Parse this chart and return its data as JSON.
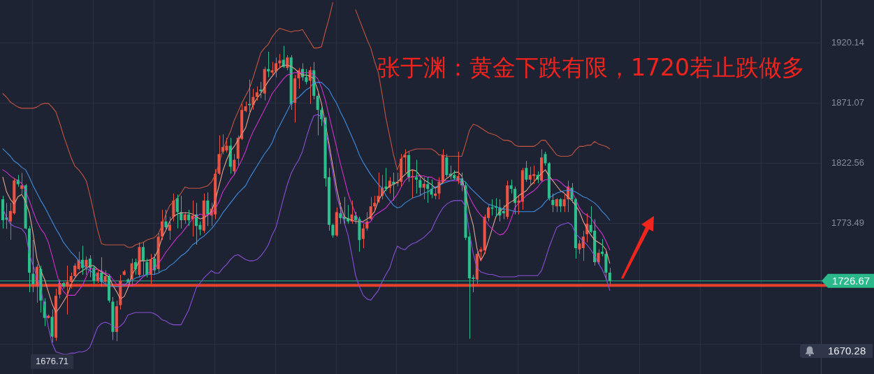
{
  "chart_data": {
    "type": "candlestick",
    "title": "张于渊：黄金下跌有限，1720若止跌做多",
    "categories": [
      null,
      null,
      null,
      null,
      null,
      null,
      null,
      null,
      null,
      null,
      null,
      null,
      null,
      null,
      null,
      null,
      null,
      null,
      null,
      null,
      null,
      null,
      null,
      null,
      null,
      null,
      null,
      null,
      null,
      null,
      null,
      null,
      null,
      null,
      null,
      null,
      null,
      null,
      null,
      null,
      null,
      null,
      null,
      null,
      null,
      null,
      null,
      null,
      null,
      null,
      null,
      null,
      null,
      null,
      null,
      null,
      null,
      null,
      null,
      null,
      null,
      null,
      null,
      null,
      null,
      null,
      null,
      null,
      null,
      null,
      null,
      null,
      null,
      null,
      null,
      null,
      null,
      null,
      null,
      null,
      null,
      null,
      null,
      null,
      null,
      null,
      null,
      null,
      null,
      null,
      null,
      null,
      null,
      null,
      null,
      null,
      null,
      null,
      null,
      null,
      null,
      null,
      null,
      null,
      null,
      null,
      null,
      null,
      null,
      null,
      null,
      null,
      null,
      null,
      null,
      null,
      null,
      null,
      null,
      null,
      null,
      null,
      null,
      null,
      null,
      null,
      null,
      null,
      null,
      null,
      null,
      null,
      null,
      null,
      null,
      null,
      null,
      null,
      null,
      null,
      null,
      null,
      null,
      null,
      null,
      null,
      null,
      null,
      null,
      null,
      null,
      null,
      null,
      null,
      null,
      null,
      null,
      null,
      null,
      null,
      null
    ],
    "ohlc": [
      [
        1793.0,
        1795.8,
        1769.2,
        1776.0
      ],
      [
        1778.2,
        1790.0,
        1769.0,
        1776.5
      ],
      [
        1775.0,
        1790.1,
        1760.1,
        1783.5
      ],
      [
        1781.6,
        1810.0,
        1780.5,
        1808.3
      ],
      [
        1809.0,
        1812.8,
        1803.2,
        1805.3
      ],
      [
        1801.5,
        1814.5,
        1795.8,
        1804.3
      ],
      [
        1804.3,
        1805.5,
        1768.6,
        1769.3
      ],
      [
        1769.3,
        1771.4,
        1717.5,
        1733.4
      ],
      [
        1732.5,
        1760.1,
        1717.5,
        1723.9
      ],
      [
        1722.1,
        1740.2,
        1709.0,
        1738.1
      ],
      [
        1736.3,
        1739.1,
        1701.1,
        1710.7
      ],
      [
        1709.8,
        1712.6,
        1689.9,
        1696.6
      ],
      [
        1696.6,
        1699.4,
        1696.0,
        1698.4
      ],
      [
        1697.5,
        1703.4,
        1676.71,
        1681.4
      ],
      [
        1680.5,
        1720.4,
        1678.0,
        1714.6
      ],
      [
        1715.5,
        1727.8,
        1712.6,
        1724.9
      ],
      [
        1724.9,
        1726.1,
        1720.4,
        1722.1
      ],
      [
        1722.1,
        1739.1,
        1699.4,
        1725.9
      ],
      [
        1725.9,
        1733.4,
        1720.4,
        1730.6
      ],
      [
        1730.6,
        1741.0,
        1729.5,
        1739.1
      ],
      [
        1736.3,
        1750.4,
        1735.3,
        1743.8
      ],
      [
        1743.8,
        1755.2,
        1731.6,
        1737.2
      ],
      [
        1738.1,
        1746.6,
        1731.7,
        1743.8
      ],
      [
        1744.8,
        1747.6,
        1729.6,
        1737.2
      ],
      [
        1737.2,
        1739.1,
        1724.0,
        1726.8
      ],
      [
        1726.8,
        1736.3,
        1724.9,
        1733.4
      ],
      [
        1733.4,
        1745.9,
        1722.1,
        1725.9
      ],
      [
        1725.9,
        1735.3,
        1722.1,
        1730.6
      ],
      [
        1730.6,
        1731.7,
        1709.0,
        1710.7
      ],
      [
        1709.8,
        1713.6,
        1678.6,
        1685.2
      ],
      [
        1685.2,
        1710.7,
        1677.7,
        1706.0
      ],
      [
        1707.0,
        1731.6,
        1703.4,
        1726.8
      ],
      [
        1731.6,
        1735.7,
        1731.2,
        1734.4
      ],
      [
        1727.8,
        1728.9,
        1724.9,
        1726.1
      ],
      [
        1727.8,
        1744.8,
        1722.1,
        1741.0
      ],
      [
        1741.9,
        1744.8,
        1731.7,
        1736.3
      ],
      [
        1731.6,
        1758.0,
        1729.6,
        1754.2
      ],
      [
        1754.2,
        1758.0,
        1731.6,
        1742.9
      ],
      [
        1741.9,
        1744.8,
        1729.6,
        1731.6
      ],
      [
        1731.6,
        1748.6,
        1724.0,
        1743.8
      ],
      [
        1744.8,
        1748.6,
        1731.7,
        1735.3
      ],
      [
        1736.3,
        1765.6,
        1733.4,
        1762.7
      ],
      [
        1762.7,
        1784.5,
        1759.9,
        1775.0
      ],
      [
        1775.0,
        1784.5,
        1767.5,
        1770.3
      ],
      [
        1767.5,
        1778.8,
        1760.1,
        1772.2
      ],
      [
        1778.8,
        1797.7,
        1775.0,
        1792.0
      ],
      [
        1793.9,
        1796.9,
        1769.3,
        1782.6
      ],
      [
        1782.6,
        1795.8,
        1769.3,
        1776.0
      ],
      [
        1776.0,
        1782.8,
        1773.1,
        1780.7
      ],
      [
        1780.7,
        1784.5,
        1771.4,
        1776.0
      ],
      [
        1776.9,
        1792.0,
        1762.7,
        1779.8
      ],
      [
        1780.7,
        1790.1,
        1756.1,
        1771.3
      ],
      [
        1772.2,
        1775.0,
        1763.7,
        1768.4
      ],
      [
        1767.5,
        1797.7,
        1765.6,
        1792.0
      ],
      [
        1792.0,
        1798.6,
        1771.3,
        1780.7
      ],
      [
        1779.8,
        1790.1,
        1771.3,
        1785.4
      ],
      [
        1780.7,
        1817.5,
        1776.9,
        1813.8
      ],
      [
        1813.8,
        1845.0,
        1812.8,
        1829.8
      ],
      [
        1831.7,
        1845.9,
        1829.8,
        1835.5
      ],
      [
        1832.7,
        1843.0,
        1831.0,
        1836.5
      ],
      [
        1836.5,
        1843.0,
        1813.8,
        1819.5
      ],
      [
        1815.7,
        1829.8,
        1812.8,
        1825.1
      ],
      [
        1826.0,
        1845.0,
        1820.4,
        1843.0
      ],
      [
        1842.1,
        1870.5,
        1841.2,
        1865.7
      ],
      [
        1864.8,
        1872.4,
        1863.9,
        1868.6
      ],
      [
        1870.5,
        1890.3,
        1863.9,
        1869.5
      ],
      [
        1869.5,
        1882.8,
        1865.7,
        1876.2
      ],
      [
        1876.2,
        1884.7,
        1873.3,
        1879.9
      ],
      [
        1882.2,
        1888.4,
        1875.2,
        1880.9
      ],
      [
        1879.0,
        1900.7,
        1873.3,
        1898.9
      ],
      [
        1898.9,
        1913.0,
        1892.2,
        1896.9
      ],
      [
        1896.0,
        1904.7,
        1894.1,
        1897.9
      ],
      [
        1896.9,
        1908.3,
        1892.2,
        1903.6
      ],
      [
        1903.6,
        1911.1,
        1899.8,
        1905.8
      ],
      [
        1906.4,
        1917.7,
        1899.8,
        1900.7
      ],
      [
        1899.8,
        1910.2,
        1897.9,
        1908.3
      ],
      [
        1908.3,
        1910.2,
        1865.7,
        1870.5
      ],
      [
        1871.4,
        1894.1,
        1855.4,
        1891.3
      ],
      [
        1891.3,
        1899.8,
        1882.8,
        1897.9
      ],
      [
        1898.9,
        1903.6,
        1889.4,
        1892.2
      ],
      [
        1892.2,
        1898.9,
        1886.5,
        1888.4
      ],
      [
        1889.4,
        1900.7,
        1870.5,
        1897.9
      ],
      [
        1897.9,
        1904.5,
        1874.2,
        1877.1
      ],
      [
        1877.1,
        1879.0,
        1845.0,
        1865.7
      ],
      [
        1865.7,
        1867.7,
        1852.5,
        1858.2
      ],
      [
        1859.2,
        1860.1,
        1803.4,
        1810.0
      ],
      [
        1811.0,
        1818.5,
        1767.5,
        1772.2
      ],
      [
        1772.2,
        1773.1,
        1761.8,
        1763.7
      ],
      [
        1763.7,
        1786.4,
        1762.7,
        1782.6
      ],
      [
        1781.6,
        1790.1,
        1773.1,
        1777.8
      ],
      [
        1778.8,
        1794.9,
        1773.1,
        1776.9
      ],
      [
        1777.8,
        1788.3,
        1773.1,
        1775.0
      ],
      [
        1775.0,
        1792.0,
        1773.1,
        1780.7
      ],
      [
        1779.8,
        1782.8,
        1773.1,
        1776.0
      ],
      [
        1776.9,
        1778.8,
        1750.4,
        1759.9
      ],
      [
        1760.8,
        1773.1,
        1753.3,
        1769.3
      ],
      [
        1769.3,
        1782.6,
        1767.5,
        1775.0
      ],
      [
        1776.9,
        1794.9,
        1776.0,
        1787.3
      ],
      [
        1787.3,
        1795.8,
        1784.5,
        1790.1
      ],
      [
        1791.1,
        1814.7,
        1790.1,
        1795.8
      ],
      [
        1795.8,
        1812.8,
        1793.0,
        1802.4
      ],
      [
        1803.4,
        1818.5,
        1799.6,
        1801.5
      ],
      [
        1802.4,
        1811.0,
        1797.7,
        1808.1
      ],
      [
        1807.2,
        1814.7,
        1792.0,
        1805.3
      ],
      [
        1806.0,
        1814.7,
        1803.4,
        1807.2
      ],
      [
        1807.2,
        1829.8,
        1803.4,
        1826.0
      ],
      [
        1827.0,
        1833.6,
        1814.7,
        1828.9
      ],
      [
        1828.9,
        1831.7,
        1807.2,
        1811.0
      ],
      [
        1811.0,
        1816.6,
        1793.9,
        1811.9
      ],
      [
        1811.0,
        1825.1,
        1797.7,
        1809.0
      ],
      [
        1808.7,
        1812.8,
        1795.8,
        1802.4
      ],
      [
        1802.4,
        1811.0,
        1793.0,
        1805.6
      ],
      [
        1805.3,
        1811.0,
        1790.1,
        1801.5
      ],
      [
        1801.5,
        1809.0,
        1793.9,
        1796.8
      ],
      [
        1795.8,
        1801.5,
        1793.0,
        1797.7
      ],
      [
        1797.7,
        1811.0,
        1793.0,
        1807.2
      ],
      [
        1807.2,
        1833.6,
        1806.2,
        1828.9
      ],
      [
        1827.0,
        1829.8,
        1811.0,
        1812.8
      ],
      [
        1813.8,
        1820.4,
        1809.0,
        1811.9
      ],
      [
        1812.8,
        1816.6,
        1809.0,
        1810.0
      ],
      [
        1808.1,
        1831.7,
        1805.3,
        1811.9
      ],
      [
        1810.0,
        1814.7,
        1799.6,
        1804.3
      ],
      [
        1804.3,
        1807.2,
        1759.9,
        1761.8
      ],
      [
        1762.7,
        1765.6,
        1679.6,
        1728.7
      ],
      [
        1729.5,
        1731.7,
        1717.4,
        1728.3
      ],
      [
        1727.8,
        1752.3,
        1724.0,
        1748.6
      ],
      [
        1750.4,
        1754.2,
        1742.9,
        1752.3
      ],
      [
        1751.4,
        1780.7,
        1748.6,
        1778.8
      ],
      [
        1777.8,
        1788.3,
        1775.0,
        1786.4
      ],
      [
        1786.4,
        1793.0,
        1779.8,
        1785.4
      ],
      [
        1787.3,
        1793.9,
        1778.8,
        1786.2
      ],
      [
        1786.4,
        1793.0,
        1775.0,
        1779.8
      ],
      [
        1783.5,
        1788.3,
        1776.9,
        1781.6
      ],
      [
        1778.8,
        1808.1,
        1776.9,
        1804.3
      ],
      [
        1804.3,
        1809.0,
        1797.7,
        1801.5
      ],
      [
        1801.5,
        1803.4,
        1780.7,
        1790.1
      ],
      [
        1790.1,
        1795.8,
        1780.7,
        1792.0
      ],
      [
        1791.1,
        1818.5,
        1784.5,
        1816.6
      ],
      [
        1818.5,
        1824.2,
        1807.2,
        1809.0
      ],
      [
        1809.0,
        1819.5,
        1804.3,
        1812.8
      ],
      [
        1811.9,
        1820.4,
        1805.3,
        1813.4
      ],
      [
        1812.8,
        1815.7,
        1806.2,
        1809.0
      ],
      [
        1808.1,
        1833.6,
        1807.2,
        1827.0
      ],
      [
        1829.8,
        1831.7,
        1820.4,
        1822.3
      ],
      [
        1822.3,
        1823.2,
        1792.0,
        1793.9
      ],
      [
        1792.4,
        1797.7,
        1782.6,
        1788.3
      ],
      [
        1787.3,
        1793.9,
        1782.6,
        1793.0
      ],
      [
        1793.0,
        1793.9,
        1782.6,
        1787.3
      ],
      [
        1787.3,
        1797.7,
        1782.6,
        1793.0
      ],
      [
        1793.0,
        1808.1,
        1782.6,
        1803.4
      ],
      [
        1802.4,
        1806.2,
        1790.1,
        1793.0
      ],
      [
        1793.0,
        1793.9,
        1744.8,
        1753.3
      ],
      [
        1752.3,
        1759.9,
        1748.6,
        1757.1
      ],
      [
        1753.3,
        1767.5,
        1742.9,
        1762.7
      ],
      [
        1764.6,
        1781.6,
        1758.0,
        1773.1
      ],
      [
        1772.2,
        1787.3,
        1765.6,
        1766.5
      ],
      [
        1767.5,
        1776.9,
        1739.1,
        1741.9
      ],
      [
        1741.9,
        1752.3,
        1740.1,
        1749.5
      ],
      [
        1750.4,
        1760.8,
        1746.6,
        1748.6
      ],
      [
        1748.6,
        1752.3,
        1727.8,
        1733.4
      ],
      [
        1733.4,
        1737.2,
        1724.0,
        1726.67
      ]
    ],
    "colors": [
      "#2cbf8c",
      "#2cbf8c",
      "#e95444",
      "#e95444",
      "#2cbf8c",
      "#e95444",
      "#2cbf8c",
      "#2cbf8c",
      "#2cbf8c",
      "#e95444",
      "#2cbf8c",
      "#2cbf8c",
      "#e95444",
      "#2cbf8c",
      "#e95444",
      "#e95444",
      "#2cbf8c",
      "#e95444",
      "#e95444",
      "#e95444",
      "#e95444",
      "#2cbf8c",
      "#e95444",
      "#2cbf8c",
      "#2cbf8c",
      "#e95444",
      "#2cbf8c",
      "#e95444",
      "#2cbf8c",
      "#2cbf8c",
      "#e95444",
      "#e95444",
      "#e95444",
      "#2cbf8c",
      "#e95444",
      "#2cbf8c",
      "#e95444",
      "#2cbf8c",
      "#2cbf8c",
      "#e95444",
      "#2cbf8c",
      "#e95444",
      "#e95444",
      "#2cbf8c",
      "#e95444",
      "#e95444",
      "#2cbf8c",
      "#2cbf8c",
      "#e95444",
      "#2cbf8c",
      "#e95444",
      "#2cbf8c",
      "#2cbf8c",
      "#e95444",
      "#2cbf8c",
      "#e95444",
      "#e95444",
      "#e95444",
      "#e95444",
      "#e95444",
      "#2cbf8c",
      "#e95444",
      "#e95444",
      "#e95444",
      "#e95444",
      "#2cbf8c",
      "#e95444",
      "#e95444",
      "#2cbf8c",
      "#e95444",
      "#2cbf8c",
      "#e95444",
      "#e95444",
      "#e95444",
      "#2cbf8c",
      "#e95444",
      "#2cbf8c",
      "#e95444",
      "#e95444",
      "#2cbf8c",
      "#2cbf8c",
      "#e95444",
      "#2cbf8c",
      "#2cbf8c",
      "#2cbf8c",
      "#2cbf8c",
      "#2cbf8c",
      "#2cbf8c",
      "#e95444",
      "#2cbf8c",
      "#2cbf8c",
      "#2cbf8c",
      "#e95444",
      "#2cbf8c",
      "#2cbf8c",
      "#e95444",
      "#e95444",
      "#e95444",
      "#e95444",
      "#e95444",
      "#e95444",
      "#2cbf8c",
      "#e95444",
      "#2cbf8c",
      "#e95444",
      "#e95444",
      "#e95444",
      "#2cbf8c",
      "#e95444",
      "#2cbf8c",
      "#2cbf8c",
      "#e95444",
      "#2cbf8c",
      "#2cbf8c",
      "#e95444",
      "#e95444",
      "#e95444",
      "#2cbf8c",
      "#2cbf8c",
      "#2cbf8c",
      "#e95444",
      "#2cbf8c",
      "#2cbf8c",
      "#2cbf8c",
      "#2cbf8c",
      "#e95444",
      "#e95444",
      "#e95444",
      "#e95444",
      "#2cbf8c",
      "#2cbf8c",
      "#2cbf8c",
      "#2cbf8c",
      "#e95444",
      "#2cbf8c",
      "#2cbf8c",
      "#e95444",
      "#e95444",
      "#2cbf8c",
      "#e95444",
      "#e95444",
      "#2cbf8c",
      "#e95444",
      "#2cbf8c",
      "#2cbf8c",
      "#2cbf8c",
      "#e95444",
      "#2cbf8c",
      "#e95444",
      "#e95444",
      "#2cbf8c",
      "#2cbf8c",
      "#e95444",
      "#e95444",
      "#e95444",
      "#2cbf8c",
      "#2cbf8c",
      "#e95444",
      "#2cbf8c",
      "#2cbf8c",
      "#2cbf8c"
    ],
    "series": [
      {
        "type": "line",
        "color": "#c2553f",
        "values": [
          1879,
          1876,
          1872,
          1870,
          1868,
          1867,
          1867,
          1867,
          1867,
          1868,
          1870,
          1871,
          1871,
          1868,
          1864,
          1855,
          1845,
          1836,
          1827,
          1820,
          1817,
          1813,
          1808,
          1796,
          1782,
          1768,
          1757,
          1756,
          1756,
          1756,
          1756,
          1756,
          1756,
          1754,
          1754,
          1756,
          1757,
          1758,
          1760,
          1761,
          1762,
          1765,
          1772,
          1781,
          1788,
          1791,
          1794,
          1798,
          1803,
          1802,
          1802,
          1802,
          1802,
          1803,
          1804,
          1807,
          1813,
          1822,
          1833,
          1841,
          1848,
          1857,
          1864,
          1871,
          1877,
          1883,
          1892,
          1902,
          1912,
          1916,
          1919,
          1925,
          1929,
          1932,
          1931,
          1930,
          1929,
          1930,
          1930,
          1931,
          1926,
          1921,
          1916,
          1916,
          1917,
          1929,
          1940,
          1953,
          null,
          null,
          null,
          null,
          null,
          1947,
          1939,
          1931,
          1923,
          1916,
          1905,
          1896,
          1878,
          1859,
          1844,
          1829,
          1817,
          1825,
          1830,
          1832,
          1833,
          1834,
          1834,
          1834,
          1834,
          1834,
          1832,
          1829,
          1829,
          1828,
          1828,
          1828,
          1828,
          1828,
          1838,
          1849,
          1854,
          1853,
          1851,
          1849,
          1847,
          1846,
          1845,
          1843,
          1841,
          1841,
          1840,
          1837,
          1836,
          1836,
          1836,
          1836,
          1836,
          1838,
          1841,
          1841,
          1837,
          1833,
          1829,
          1828,
          1828,
          1828,
          1829,
          1833,
          1836,
          1836,
          1837,
          1837,
          1840,
          1838,
          1837,
          1836,
          1834
        ]
      },
      {
        "type": "line",
        "color": "#8a4fd6",
        "values": [
          1786,
          1778,
          1773,
          1771,
          1770,
          1769,
          1765,
          1749,
          1739,
          1730,
          1720,
          1706,
          1689,
          1676,
          1669,
          1668,
          1667,
          1667,
          1668,
          1668,
          1669,
          1669,
          1670,
          1673,
          1681,
          1689,
          1692,
          1693,
          1692,
          1690,
          1688,
          1690,
          1693,
          1699,
          1700,
          1701,
          1701,
          1701,
          1701,
          1701,
          1700,
          1698,
          1695,
          1694,
          1692,
          1691,
          1691,
          1691,
          1697,
          1703,
          1712,
          1721,
          1725,
          1729,
          1732,
          1735,
          1733,
          1733,
          1737,
          1740,
          1744,
          1747,
          1748,
          1746,
          1744,
          1743,
          1743,
          1744,
          1747,
          1751,
          1756,
          1764,
          1770,
          1782,
          1794,
          1805,
          1814,
          1820,
          1825,
          1832,
          1843,
          1853,
          1861,
          1862,
          1860,
          1853,
          1833,
          1815,
          1796,
          1785,
          1774,
          1764,
          1748,
          1731,
          1722,
          1715,
          1712,
          1711,
          1715,
          1719,
          1726,
          1732,
          1737,
          1747,
          1755,
          1753,
          1752,
          1755,
          1757,
          1758,
          1760,
          1762,
          1765,
          1768,
          1775,
          1781,
          1786,
          1789,
          1791,
          1792,
          1792,
          1792,
          1787,
          1766,
          1749,
          1737,
          1734,
          1733,
          1732,
          1732,
          1731,
          1730,
          1730,
          1730,
          1730,
          1730,
          1731,
          1731,
          1731,
          1731,
          1731,
          1731,
          1735,
          1744,
          1754,
          1762,
          1770,
          1772,
          1773,
          1774,
          1772,
          1765,
          1762,
          1759,
          1756,
          1752,
          1747,
          1741,
          1736,
          1729,
          1719
        ]
      },
      {
        "type": "line",
        "color": "#3d8ee0",
        "values": [
          1834,
          1831,
          1828,
          1824,
          1822,
          1819,
          1817,
          1811,
          1804,
          1798,
          1792,
          1787,
          1781,
          1775,
          1769,
          1764,
          1758,
          1754,
          1750,
          1747,
          1743,
          1740,
          1737,
          1735,
          1733,
          1730,
          1727,
          1724,
          1723,
          1722,
          1722,
          1722,
          1723,
          1726,
          1727,
          1729,
          1730,
          1731,
          1732,
          1732,
          1732,
          1733,
          1735,
          1736,
          1739,
          1741,
          1744,
          1747,
          1749,
          1752,
          1756,
          1758,
          1761,
          1763,
          1766,
          1769,
          1773,
          1777,
          1782,
          1786,
          1790,
          1794,
          1798,
          1801,
          1804,
          1810,
          1815,
          1820,
          1825,
          1830,
          1834,
          1839,
          1847,
          1853,
          1859,
          1865,
          1871,
          1874,
          1876,
          1879,
          1882,
          1884,
          1888,
          1888,
          1888,
          1885,
          1882,
          1876,
          1871,
          1864,
          1858,
          1851,
          1844,
          1837,
          1829,
          1823,
          1818,
          1813,
          1809,
          1805,
          1802,
          1796,
          1792,
          1788,
          1786,
          1787,
          1790,
          1792,
          1794,
          1795,
          1796,
          1798,
          1799,
          1801,
          1803,
          1804,
          1806,
          1807,
          1808,
          1809,
          1810,
          1809,
          1807,
          1803,
          1800,
          1797,
          1794,
          1791,
          1789,
          1788,
          1787,
          1786,
          1785,
          1785,
          1784,
          1783,
          1783,
          1783,
          1783,
          1783,
          1783,
          1785,
          1787,
          1791,
          1794,
          1796,
          1798,
          1799,
          1800,
          1800,
          1800,
          1799,
          1797,
          1795,
          1794,
          1792,
          1790,
          1787,
          1783,
          1780,
          1776
        ]
      },
      {
        "type": "line",
        "color": "#cf30cf",
        "values": [
          1817,
          1815,
          1812,
          1810,
          1808,
          1806,
          1800,
          1792,
          1783,
          1775,
          1769,
          1765,
          1758,
          1747,
          1735,
          1724,
          1718,
          1715,
          1715,
          1715,
          1719,
          1723,
          1730,
          1737,
          1736,
          1736,
          1735,
          1733,
          1732,
          1728,
          1724,
          1724,
          1724,
          1723,
          1723,
          1724,
          1727,
          1730,
          1732,
          1735,
          1737,
          1741,
          1745,
          1750,
          1754,
          1758,
          1762,
          1765,
          1769,
          1773,
          1777,
          1779,
          1781,
          1780,
          1780,
          1782,
          1785,
          1791,
          1799,
          1804,
          1809,
          1813,
          1819,
          1825,
          1832,
          1841,
          1848,
          1854,
          1860,
          1866,
          1872,
          1879,
          1883,
          1887,
          1891,
          1894,
          1895,
          1896,
          1896,
          1896,
          1896,
          1896,
          1894,
          1891,
          1884,
          1874,
          1861,
          1848,
          1835,
          1822,
          1810,
          1798,
          1789,
          1781,
          1775,
          1774,
          1773,
          1775,
          1780,
          1782,
          1784,
          1786,
          1790,
          1793,
          1797,
          1803,
          1808,
          1811,
          1811,
          1812,
          1812,
          1812,
          1811,
          1811,
          1809,
          1808,
          1808,
          1808,
          1808,
          1808,
          1808,
          1806,
          1802,
          1795,
          1789,
          1784,
          1780,
          1777,
          1772,
          1769,
          1766,
          1764,
          1765,
          1769,
          1777,
          1786,
          1790,
          1793,
          1796,
          1798,
          1800,
          1803,
          1807,
          1809,
          1809,
          1809,
          1809,
          1807,
          1804,
          1802,
          1800,
          1793,
          1786,
          1782,
          1780,
          1778,
          1773,
          1769,
          1765,
          1759,
          1752
        ]
      },
      {
        "type": "line",
        "color": "#e4a48c",
        "values": [
          1811,
          1799,
          1793,
          1789,
          1795,
          1797,
          1791,
          1782,
          1765,
          1745,
          1735,
          1728,
          1718,
          1708,
          1701,
          1705,
          1710,
          1715,
          1724,
          1729,
          1733,
          1735,
          1737,
          1739,
          1739,
          1736,
          1734,
          1732,
          1730,
          1723,
          1718,
          1712,
          1714,
          1721,
          1731,
          1737,
          1743,
          1743,
          1743,
          1744,
          1746,
          1752,
          1762,
          1768,
          1775,
          1779,
          1781,
          1782,
          1782,
          1782,
          1781,
          1779,
          1777,
          1778,
          1780,
          1783,
          1792,
          1804,
          1816,
          1825,
          1832,
          1836,
          1841,
          1846,
          1851,
          1862,
          1870,
          1875,
          1879,
          1884,
          1889,
          1893,
          1897,
          1900,
          1902,
          1902,
          1901,
          1899,
          1896,
          1894,
          1894,
          1893,
          1891,
          1882,
          1871,
          1855,
          1838,
          1820,
          1802,
          1788,
          1779,
          1777,
          1776,
          1775,
          1775,
          1775,
          1777,
          1779,
          1783,
          1792,
          1797,
          1801,
          1804,
          1805,
          1807,
          1810,
          1813,
          1816,
          1817,
          1816,
          1812,
          1809,
          1807,
          1805,
          1802,
          1804,
          1807,
          1810,
          1812,
          1815,
          1815,
          1812,
          1797,
          1783,
          1772,
          1753,
          1743,
          1749,
          1759,
          1769,
          1779,
          1783,
          1786,
          1789,
          1791,
          1793,
          1796,
          1798,
          1800,
          1804,
          1807,
          1811,
          1814,
          1817,
          1812,
          1808,
          1804,
          1800,
          1798,
          1795,
          1792,
          1788,
          1783,
          1775,
          1769,
          1764,
          1760,
          1758,
          1756,
          1752,
          1741
        ]
      }
    ],
    "ylim": [
      1651,
      1955
    ],
    "yticks": [
      1920.14,
      1871.07,
      1822.56,
      1773.49,
      {
        "value": 1724.4,
        "label": null
      },
      {
        "value": 1675.3,
        "label": null
      }
    ],
    "ref_lines": [
      {
        "axis": "y",
        "value": 1723,
        "color": "#e8402c"
      },
      {
        "axis": "y",
        "value": 1726.67,
        "label": "1726.67",
        "color": "#2bb88a"
      }
    ],
    "annotations": [
      {
        "text": "1676.71",
        "y": 1676.71
      },
      "1670.28"
    ],
    "grid": true,
    "tick_labels": "y",
    "marker": "none"
  }
}
